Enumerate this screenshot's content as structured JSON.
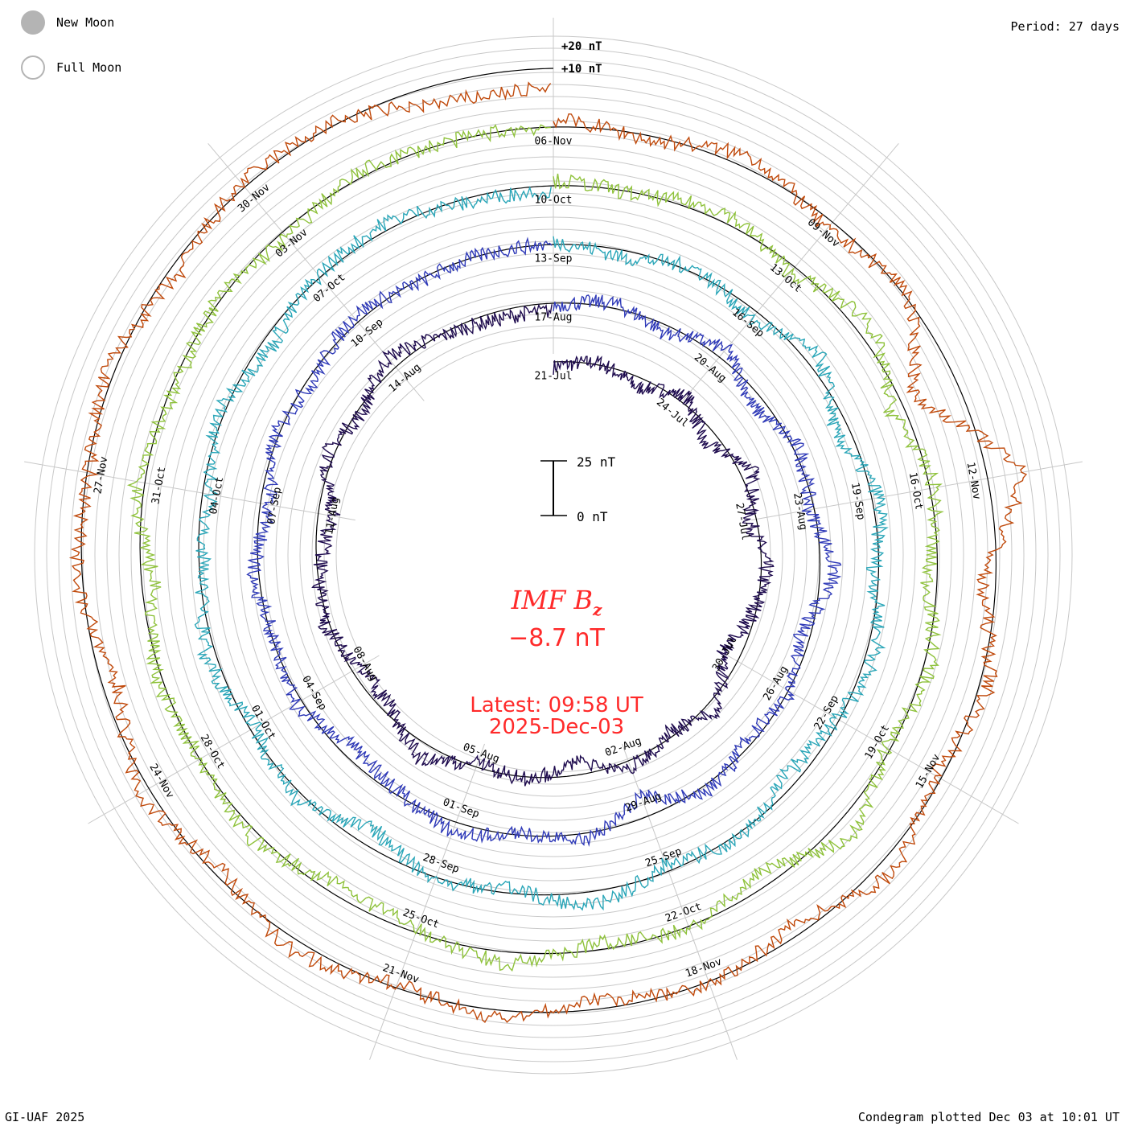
{
  "header": {
    "period_text": "Period: 27 days",
    "credit_text": "GI-UAF 2025",
    "plotted_text": "Condegram plotted Dec 03 at 10:01 UT"
  },
  "legend": {
    "new_moon_label": "New Moon",
    "full_moon_label": "Full Moon",
    "moon_color": "#b4b4b4"
  },
  "center": {
    "title_label": "IMF B",
    "title_subscript": "z",
    "current_value": "−8.7 nT",
    "latest_line": "Latest: 09:58 UT",
    "date_line": "2025-Dec-03",
    "accent_color": "#ff2a2a",
    "scale_top_label": "25 nT",
    "scale_bottom_label": "0 nT"
  },
  "chart_data": {
    "type": "line",
    "subtype": "condegram-spiral",
    "title": "IMF Bz",
    "units": "nT",
    "period_days": 27,
    "start_date": "2025-07-21",
    "end_date": "2025-12-03",
    "ring_labels": [
      "+20 nT",
      "+10 nT"
    ],
    "date_ticks": [
      [
        "21-Jul",
        "24-Jul",
        "27-Jul",
        "30-Jul",
        "02-Aug",
        "05-Aug",
        "08-Aug",
        "11-Aug",
        "14-Aug"
      ],
      [
        "17-Aug",
        "20-Aug",
        "23-Aug",
        "26-Aug",
        "29-Aug",
        "01-Sep",
        "04-Sep",
        "07-Sep",
        "10-Sep"
      ],
      [
        "13-Sep",
        "16-Sep",
        "19-Sep",
        "22-Sep",
        "25-Sep",
        "28-Sep",
        "01-Oct",
        "04-Oct",
        "07-Oct"
      ],
      [
        "10-Oct",
        "13-Oct",
        "16-Oct",
        "19-Oct",
        "22-Oct",
        "25-Oct",
        "28-Oct",
        "31-Oct",
        "03-Nov"
      ],
      [
        "06-Nov",
        "09-Nov",
        "12-Nov",
        "15-Nov",
        "18-Nov",
        "21-Nov",
        "24-Nov",
        "27-Nov",
        "30-Nov"
      ]
    ],
    "series": [
      {
        "name": "21-Jul to 17-Aug",
        "color": "#1e0b4e",
        "values": [
          -2,
          1,
          -4,
          3,
          -6,
          5,
          -3,
          2,
          -1,
          -7,
          4,
          -2,
          3,
          -5,
          1,
          -2,
          6,
          -3,
          -4,
          2,
          -1,
          -6,
          3,
          -2,
          5,
          -1,
          -3
        ]
      },
      {
        "name": "17-Aug to 13-Sep",
        "color": "#2f3ab8",
        "values": [
          -1,
          2,
          -3,
          4,
          -5,
          2,
          -2,
          6,
          -4,
          1,
          -3,
          3,
          -8,
          2,
          -1,
          4,
          -2,
          -5,
          3,
          -1,
          2,
          -4,
          1,
          -2,
          3,
          -1,
          0
        ]
      },
      {
        "name": "13-Sep to 10-Oct",
        "color": "#2aa6b8",
        "values": [
          1,
          -3,
          2,
          -4,
          5,
          -6,
          3,
          -2,
          4,
          -1,
          -5,
          2,
          -3,
          6,
          -2,
          1,
          -7,
          3,
          -2,
          4,
          -1,
          -3,
          2,
          -4,
          1,
          3,
          -2
        ]
      },
      {
        "name": "10-Oct to 06-Nov",
        "color": "#8fc23c",
        "values": [
          2,
          -1,
          4,
          -3,
          6,
          -5,
          2,
          -4,
          3,
          -2,
          7,
          -6,
          1,
          -3,
          5,
          -2,
          -4,
          3,
          -1,
          2,
          -5,
          4,
          -2,
          1,
          -3,
          2,
          0
        ]
      },
      {
        "name": "06-Nov to 03-Dec",
        "color": "#c04a0c",
        "values": [
          3,
          -2,
          5,
          -4,
          2,
          -18,
          14,
          -6,
          4,
          -3,
          6,
          -5,
          2,
          -4,
          3,
          -2,
          5,
          -3,
          4,
          -6,
          2,
          -1,
          3,
          -4,
          2,
          1,
          -8
        ]
      }
    ]
  }
}
